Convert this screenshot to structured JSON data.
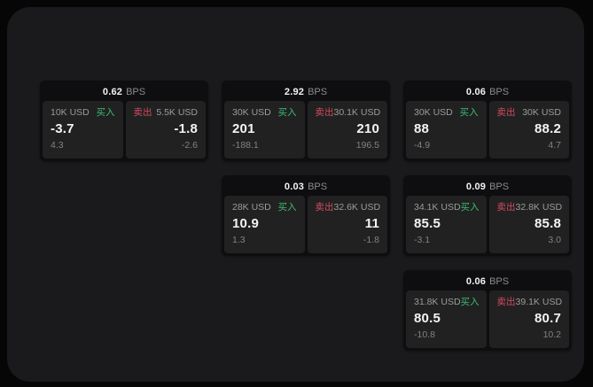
{
  "colors": {
    "buy_green": "#3dbb71",
    "sell_red": "#d34b5e",
    "window_bg": "#1a191b",
    "card_bg": "#0e0e10",
    "panel_bg": "#212122"
  },
  "cards": [
    {
      "bps_value": "0.62",
      "bps_unit": "BPS",
      "buy": {
        "tag": "买入",
        "amount": "10K USD",
        "price": "-3.7",
        "delta": "4.3"
      },
      "sell": {
        "tag": "卖出",
        "amount": "5.5K USD",
        "price": "-1.8",
        "delta": "-2.6"
      }
    },
    {
      "bps_value": "2.92",
      "bps_unit": "BPS",
      "buy": {
        "tag": "买入",
        "amount": "30K USD",
        "price": "201",
        "delta": "-188.1"
      },
      "sell": {
        "tag": "卖出",
        "amount": "30.1K USD",
        "price": "210",
        "delta": "196.5"
      }
    },
    {
      "bps_value": "0.06",
      "bps_unit": "BPS",
      "buy": {
        "tag": "买入",
        "amount": "30K USD",
        "price": "88",
        "delta": "-4.9"
      },
      "sell": {
        "tag": "卖出",
        "amount": "30K USD",
        "price": "88.2",
        "delta": "4.7"
      }
    },
    {
      "bps_value": "0.03",
      "bps_unit": "BPS",
      "buy": {
        "tag": "买入",
        "amount": "28K USD",
        "price": "10.9",
        "delta": "1.3"
      },
      "sell": {
        "tag": "卖出",
        "amount": "32.6K USD",
        "price": "11",
        "delta": "-1.8"
      }
    },
    {
      "bps_value": "0.09",
      "bps_unit": "BPS",
      "buy": {
        "tag": "买入",
        "amount": "34.1K USD",
        "price": "85.5",
        "delta": "-3.1"
      },
      "sell": {
        "tag": "卖出",
        "amount": "32.8K USD",
        "price": "85.8",
        "delta": "3.0"
      }
    },
    {
      "bps_value": "0.06",
      "bps_unit": "BPS",
      "buy": {
        "tag": "买入",
        "amount": "31.8K USD",
        "price": "80.5",
        "delta": "-10.8"
      },
      "sell": {
        "tag": "卖出",
        "amount": "39.1K USD",
        "price": "80.7",
        "delta": "10.2"
      }
    }
  ]
}
